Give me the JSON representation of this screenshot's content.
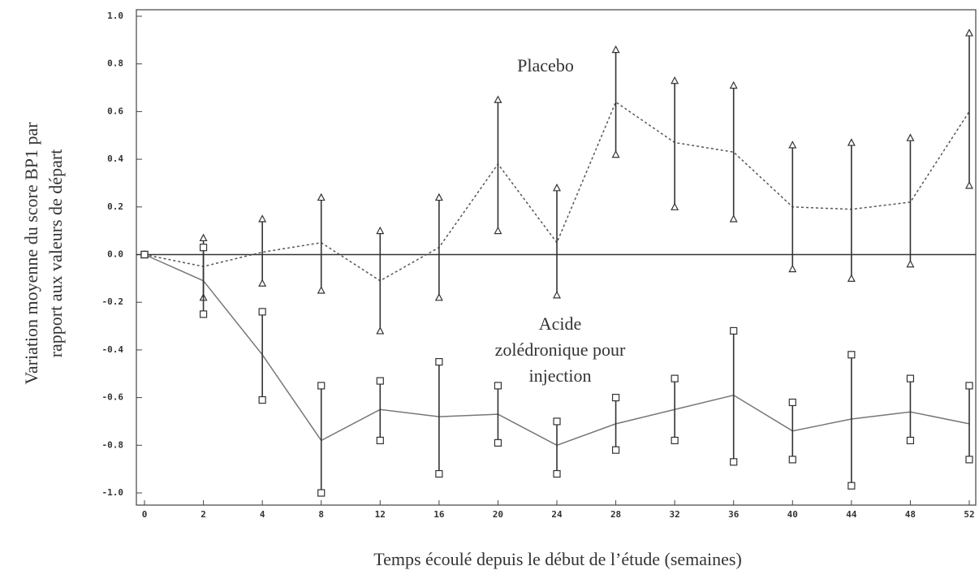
{
  "chart_data": {
    "type": "line",
    "x_label": "Temps écoulé depuis le début de l’étude (semaines)",
    "y_label_lines": [
      "Variation moyenne du score BP1 par",
      "rapport aux valeurs de départ"
    ],
    "categories": [
      "0",
      "2",
      "4",
      "8",
      "12",
      "16",
      "20",
      "24",
      "28",
      "32",
      "36",
      "40",
      "44",
      "48",
      "52"
    ],
    "ylim": [
      -1,
      1
    ],
    "yticks": [
      {
        "value": -1,
        "label": "-1.0"
      },
      -0.8,
      -0.6,
      -0.4,
      -0.2,
      {
        "value": 0,
        "label": "0.0"
      },
      0.2,
      0.4,
      0.6,
      0.8,
      {
        "value": 1,
        "label": "1.0"
      }
    ],
    "series": [
      {
        "name": "Placebo",
        "color": "#555555",
        "marker": "triangle",
        "dashed": true,
        "values": [
          0.0,
          -0.05,
          0.01,
          0.05,
          -0.11,
          0.03,
          0.38,
          0.05,
          0.64,
          0.47,
          0.43,
          0.2,
          0.19,
          0.22,
          0.6
        ],
        "upper": [
          0.0,
          0.07,
          0.15,
          0.24,
          0.1,
          0.24,
          0.65,
          0.28,
          0.86,
          0.73,
          0.71,
          0.46,
          0.47,
          0.49,
          0.93
        ],
        "lower": [
          0.0,
          -0.18,
          -0.12,
          -0.15,
          -0.32,
          -0.18,
          0.1,
          -0.17,
          0.42,
          0.2,
          0.15,
          -0.06,
          -0.1,
          -0.04,
          0.29
        ]
      },
      {
        "name_lines": [
          "Acide",
          "zolédronique pour",
          "injection"
        ],
        "color": "#777777",
        "marker": "square",
        "dashed": false,
        "values": [
          0.0,
          -0.11,
          -0.42,
          -0.78,
          -0.65,
          -0.68,
          -0.67,
          -0.8,
          -0.71,
          -0.65,
          -0.59,
          -0.74,
          -0.69,
          -0.66,
          -0.71
        ],
        "upper": [
          0.0,
          0.03,
          -0.24,
          -0.55,
          -0.53,
          -0.45,
          -0.55,
          -0.7,
          -0.6,
          -0.52,
          -0.32,
          -0.62,
          -0.42,
          -0.52,
          -0.55
        ],
        "lower": [
          0.0,
          -0.25,
          -0.61,
          -1.0,
          -0.78,
          -0.92,
          -0.79,
          -0.92,
          -0.82,
          -0.78,
          -0.87,
          -0.86,
          -0.97,
          -0.78,
          -0.86
        ]
      }
    ]
  }
}
